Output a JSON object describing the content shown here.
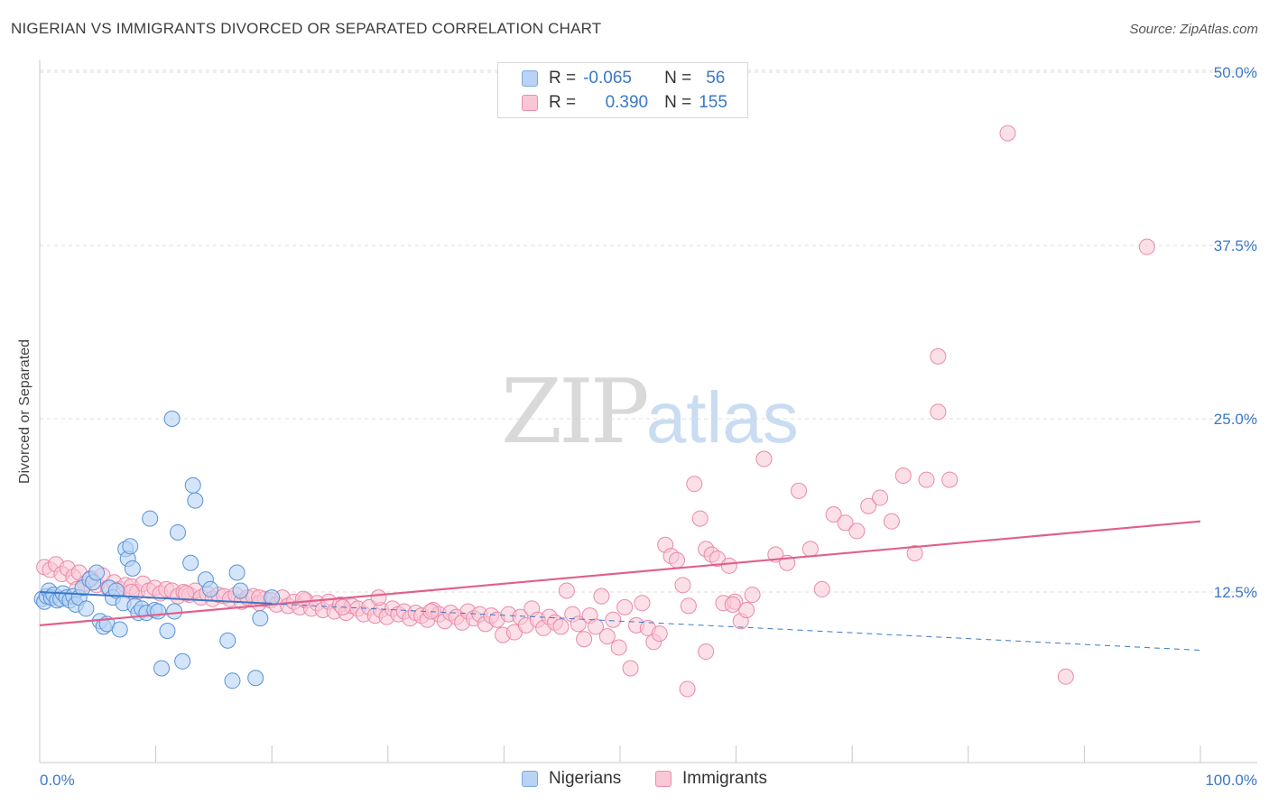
{
  "header": {
    "title": "NIGERIAN VS IMMIGRANTS DIVORCED OR SEPARATED CORRELATION CHART",
    "source": "Source: ZipAtlas.com"
  },
  "watermark": {
    "zip": "ZIP",
    "atlas": "atlas"
  },
  "legend": {
    "r_label": "R =",
    "n_label": "N =",
    "nigerians": {
      "r": "-0.065",
      "n": "56",
      "name": "Nigerians"
    },
    "immigrants": {
      "r": "0.390",
      "n": "155",
      "name": "Immigrants"
    }
  },
  "colors": {
    "nigerians_fill": "#b8d3f5",
    "nigerians_stroke": "#5a92d8",
    "immigrants_fill": "#f9c7d6",
    "immigrants_stroke": "#e98aa8",
    "immigrants_trend": "#e0608a",
    "nigerians_trend": "#3a78c8",
    "axis_label": "#3a78c8",
    "grid": "#dcdcdc"
  },
  "chart_data": {
    "type": "scatter",
    "title": "NIGERIAN VS IMMIGRANTS DIVORCED OR SEPARATED CORRELATION CHART",
    "xlabel": "",
    "ylabel": "Divorced or Separated",
    "xlim": [
      0,
      100
    ],
    "ylim": [
      0,
      50
    ],
    "x_tick_labels": [
      "0.0%",
      "100.0%"
    ],
    "y_ticks": [
      12.5,
      25.0,
      37.5,
      50.0
    ],
    "y_tick_labels": [
      "12.5%",
      "25.0%",
      "37.5%",
      "50.0%"
    ],
    "grid": "horizontal dashed",
    "series": [
      {
        "name": "Nigerians",
        "r": -0.065,
        "n": 56,
        "trend": {
          "x": [
            0,
            100
          ],
          "y": [
            12.5,
            8.3
          ]
        },
        "trend_solid_until_x": 20,
        "points": [
          [
            0.2,
            12.0
          ],
          [
            0.4,
            11.8
          ],
          [
            0.6,
            12.2
          ],
          [
            0.8,
            12.6
          ],
          [
            1.0,
            12.1
          ],
          [
            1.2,
            12.3
          ],
          [
            1.5,
            11.9
          ],
          [
            1.8,
            12.0
          ],
          [
            2.0,
            12.4
          ],
          [
            2.3,
            12.1
          ],
          [
            2.6,
            11.9
          ],
          [
            2.9,
            12.2
          ],
          [
            3.1,
            11.6
          ],
          [
            3.4,
            12.1
          ],
          [
            3.7,
            12.8
          ],
          [
            4.0,
            11.3
          ],
          [
            4.3,
            13.4
          ],
          [
            4.6,
            13.2
          ],
          [
            4.9,
            13.9
          ],
          [
            5.2,
            10.4
          ],
          [
            5.5,
            10.0
          ],
          [
            5.8,
            10.2
          ],
          [
            6.0,
            12.8
          ],
          [
            6.3,
            12.1
          ],
          [
            6.6,
            12.6
          ],
          [
            6.9,
            9.8
          ],
          [
            7.2,
            11.7
          ],
          [
            7.4,
            15.6
          ],
          [
            7.6,
            14.9
          ],
          [
            7.8,
            15.8
          ],
          [
            8.0,
            14.2
          ],
          [
            8.2,
            11.5
          ],
          [
            8.5,
            11.0
          ],
          [
            8.8,
            11.3
          ],
          [
            9.2,
            11.0
          ],
          [
            9.5,
            17.8
          ],
          [
            9.9,
            11.2
          ],
          [
            10.2,
            11.1
          ],
          [
            10.5,
            7.0
          ],
          [
            11.0,
            9.7
          ],
          [
            11.4,
            25.0
          ],
          [
            11.6,
            11.1
          ],
          [
            11.9,
            16.8
          ],
          [
            12.3,
            7.5
          ],
          [
            13.0,
            14.6
          ],
          [
            13.2,
            20.2
          ],
          [
            13.4,
            19.1
          ],
          [
            14.3,
            13.4
          ],
          [
            14.7,
            12.7
          ],
          [
            17.0,
            13.9
          ],
          [
            17.3,
            12.6
          ],
          [
            16.2,
            9.0
          ],
          [
            16.6,
            6.1
          ],
          [
            18.6,
            6.3
          ],
          [
            19.0,
            10.6
          ],
          [
            20.0,
            12.1
          ]
        ]
      },
      {
        "name": "Immigrants",
        "r": 0.39,
        "n": 155,
        "trend": {
          "x": [
            0,
            100
          ],
          "y": [
            10.1,
            17.6
          ]
        },
        "points": [
          [
            0.4,
            14.3
          ],
          [
            0.9,
            14.1
          ],
          [
            1.4,
            14.5
          ],
          [
            1.9,
            13.8
          ],
          [
            2.4,
            14.2
          ],
          [
            2.9,
            13.6
          ],
          [
            3.4,
            13.9
          ],
          [
            3.9,
            13.1
          ],
          [
            4.4,
            13.5
          ],
          [
            4.9,
            13.0
          ],
          [
            5.4,
            13.7
          ],
          [
            5.9,
            12.8
          ],
          [
            6.4,
            13.2
          ],
          [
            6.9,
            12.7
          ],
          [
            7.4,
            13.0
          ],
          [
            7.9,
            12.9
          ],
          [
            8.4,
            12.5
          ],
          [
            8.9,
            13.1
          ],
          [
            9.4,
            12.6
          ],
          [
            9.9,
            12.8
          ],
          [
            10.4,
            12.4
          ],
          [
            10.9,
            12.7
          ],
          [
            11.4,
            12.6
          ],
          [
            11.9,
            12.2
          ],
          [
            12.4,
            12.5
          ],
          [
            12.9,
            12.3
          ],
          [
            13.4,
            12.6
          ],
          [
            13.9,
            12.1
          ],
          [
            14.4,
            12.4
          ],
          [
            14.9,
            12.0
          ],
          [
            15.4,
            12.3
          ],
          [
            15.9,
            12.2
          ],
          [
            16.4,
            12.0
          ],
          [
            16.9,
            12.3
          ],
          [
            17.4,
            11.8
          ],
          [
            17.9,
            12.1
          ],
          [
            18.4,
            12.2
          ],
          [
            18.9,
            11.7
          ],
          [
            19.4,
            12.0
          ],
          [
            19.9,
            11.9
          ],
          [
            20.4,
            11.6
          ],
          [
            20.9,
            12.1
          ],
          [
            21.4,
            11.5
          ],
          [
            21.9,
            11.8
          ],
          [
            22.4,
            11.4
          ],
          [
            22.9,
            11.9
          ],
          [
            23.4,
            11.3
          ],
          [
            23.9,
            11.7
          ],
          [
            24.4,
            11.2
          ],
          [
            24.9,
            11.8
          ],
          [
            25.4,
            11.1
          ],
          [
            25.9,
            11.6
          ],
          [
            26.4,
            11.0
          ],
          [
            26.9,
            11.5
          ],
          [
            27.4,
            11.3
          ],
          [
            27.9,
            10.9
          ],
          [
            28.4,
            11.4
          ],
          [
            28.9,
            10.8
          ],
          [
            29.4,
            11.2
          ],
          [
            29.9,
            10.7
          ],
          [
            30.4,
            11.3
          ],
          [
            30.9,
            10.9
          ],
          [
            31.4,
            11.1
          ],
          [
            31.9,
            10.6
          ],
          [
            32.4,
            11.0
          ],
          [
            32.9,
            10.8
          ],
          [
            33.4,
            10.5
          ],
          [
            33.9,
            11.2
          ],
          [
            34.4,
            10.9
          ],
          [
            34.9,
            10.4
          ],
          [
            35.4,
            11.0
          ],
          [
            35.9,
            10.7
          ],
          [
            36.4,
            10.3
          ],
          [
            36.9,
            11.1
          ],
          [
            37.4,
            10.6
          ],
          [
            37.9,
            10.9
          ],
          [
            38.4,
            10.2
          ],
          [
            38.9,
            10.8
          ],
          [
            39.4,
            10.5
          ],
          [
            39.9,
            9.4
          ],
          [
            40.4,
            10.9
          ],
          [
            40.9,
            9.6
          ],
          [
            41.4,
            10.7
          ],
          [
            41.9,
            10.1
          ],
          [
            42.4,
            11.3
          ],
          [
            42.9,
            10.5
          ],
          [
            43.4,
            9.9
          ],
          [
            43.9,
            10.7
          ],
          [
            44.4,
            10.3
          ],
          [
            44.9,
            10.0
          ],
          [
            45.4,
            12.6
          ],
          [
            45.9,
            10.9
          ],
          [
            46.4,
            10.2
          ],
          [
            46.9,
            9.1
          ],
          [
            47.4,
            10.8
          ],
          [
            47.9,
            10.0
          ],
          [
            48.4,
            12.2
          ],
          [
            48.9,
            9.3
          ],
          [
            49.4,
            10.5
          ],
          [
            49.9,
            8.5
          ],
          [
            50.4,
            11.4
          ],
          [
            50.9,
            7.0
          ],
          [
            51.4,
            10.1
          ],
          [
            51.9,
            11.7
          ],
          [
            52.4,
            9.9
          ],
          [
            52.9,
            8.9
          ],
          [
            53.4,
            9.5
          ],
          [
            53.9,
            15.9
          ],
          [
            54.4,
            15.1
          ],
          [
            54.9,
            14.8
          ],
          [
            55.4,
            13.0
          ],
          [
            55.9,
            11.5
          ],
          [
            56.4,
            20.3
          ],
          [
            56.9,
            17.8
          ],
          [
            57.4,
            15.6
          ],
          [
            57.9,
            15.2
          ],
          [
            58.4,
            14.9
          ],
          [
            58.9,
            11.7
          ],
          [
            59.4,
            14.4
          ],
          [
            59.9,
            11.8
          ],
          [
            60.4,
            10.4
          ],
          [
            60.9,
            11.2
          ],
          [
            61.4,
            12.3
          ],
          [
            62.4,
            22.1
          ],
          [
            63.4,
            15.2
          ],
          [
            64.4,
            14.6
          ],
          [
            65.4,
            19.8
          ],
          [
            66.4,
            15.6
          ],
          [
            67.4,
            12.7
          ],
          [
            68.4,
            18.1
          ],
          [
            69.4,
            17.5
          ],
          [
            70.4,
            16.9
          ],
          [
            71.4,
            18.7
          ],
          [
            72.4,
            19.3
          ],
          [
            73.4,
            17.6
          ],
          [
            74.4,
            20.9
          ],
          [
            75.4,
            15.3
          ],
          [
            76.4,
            20.6
          ],
          [
            78.4,
            20.6
          ],
          [
            77.4,
            25.5
          ],
          [
            77.4,
            29.5
          ],
          [
            83.4,
            45.6
          ],
          [
            95.4,
            37.4
          ],
          [
            88.4,
            6.4
          ],
          [
            55.8,
            5.5
          ],
          [
            57.4,
            8.2
          ],
          [
            59.7,
            11.6
          ],
          [
            3.2,
            12.7
          ],
          [
            7.9,
            12.5
          ],
          [
            12.6,
            12.4
          ],
          [
            18.9,
            12.1
          ],
          [
            22.7,
            12.0
          ],
          [
            26.1,
            11.4
          ],
          [
            29.2,
            12.1
          ],
          [
            33.7,
            11.1
          ]
        ]
      }
    ]
  }
}
